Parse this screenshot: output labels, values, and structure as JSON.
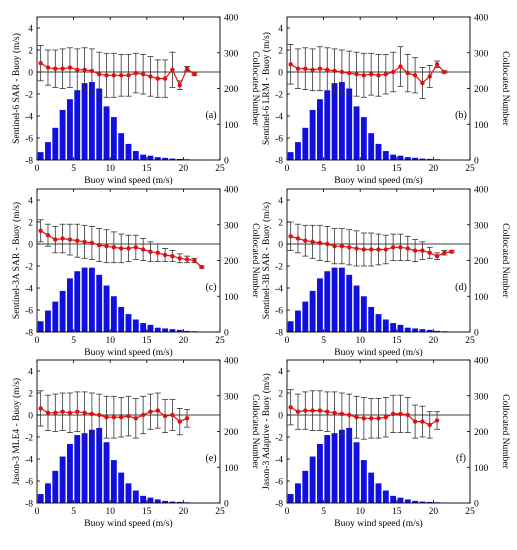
{
  "figure": {
    "shared": {
      "xlabel": "Buoy wind speed (m/s)",
      "ylabel_right": "Collocated Number",
      "x_ticks": [
        "0",
        "5",
        "10",
        "15",
        "20",
        "25"
      ],
      "y_left_ticks": [
        "4",
        "2",
        "0",
        "-2",
        "-4",
        "-6",
        "-8"
      ],
      "y_right_ticks": [
        "400",
        "300",
        "200",
        "100",
        "0"
      ]
    },
    "colors": {
      "bars": "#1010e0",
      "line": "#e01010",
      "errorbar": "#333333",
      "frame": "#000000"
    }
  },
  "chart_data": [
    {
      "type": "bar+line",
      "panel": "(a)",
      "ylabel": "Sentinel-6 SAR - Buoy (m/s)",
      "xlabel": "Buoy wind speed (m/s)",
      "y2label": "Collocated Number",
      "xlim": [
        0,
        25
      ],
      "ylim": [
        -8,
        5
      ],
      "y2lim": [
        0,
        400
      ],
      "bars": {
        "x": [
          0.5,
          1.5,
          2.5,
          3.5,
          4.5,
          5.5,
          6.5,
          7.5,
          8.5,
          9.5,
          10.5,
          11.5,
          12.5,
          13.5,
          14.5,
          15.5,
          16.5,
          17.5,
          18.5,
          19.5,
          20.5,
          21.5
        ],
        "values": [
          22,
          50,
          90,
          140,
          170,
          195,
          215,
          218,
          200,
          150,
          120,
          75,
          45,
          25,
          15,
          12,
          8,
          6,
          4,
          3,
          2,
          1
        ]
      },
      "bias": {
        "x": [
          0.5,
          1.5,
          2.5,
          3.5,
          4.5,
          5.5,
          6.5,
          7.5,
          8.5,
          9.5,
          10.5,
          11.5,
          12.5,
          13.5,
          14.5,
          15.5,
          16.5,
          17.5,
          18.5,
          19.5,
          20.5,
          21.5
        ],
        "values": [
          0.8,
          0.4,
          0.3,
          0.3,
          0.4,
          0.2,
          0.2,
          0.1,
          -0.2,
          -0.3,
          -0.3,
          -0.3,
          -0.3,
          -0.1,
          -0.2,
          -0.4,
          -0.6,
          -0.6,
          0.2,
          -1.2,
          0.3,
          -0.2
        ],
        "err": [
          1.6,
          1.6,
          1.7,
          1.8,
          1.8,
          1.9,
          2.0,
          2.0,
          2.0,
          2.0,
          2.0,
          1.9,
          1.9,
          1.8,
          1.8,
          1.8,
          1.7,
          1.7,
          1.6,
          0.4,
          0.2,
          0.1
        ]
      }
    },
    {
      "type": "bar+line",
      "panel": "(b)",
      "ylabel": "Sentinel-6 LRM - Buoy (m/s)",
      "xlabel": "Buoy wind speed (m/s)",
      "y2label": "Collocated Number",
      "xlim": [
        0,
        25
      ],
      "ylim": [
        -8,
        5
      ],
      "y2lim": [
        0,
        400
      ],
      "bars": {
        "x": [
          0.5,
          1.5,
          2.5,
          3.5,
          4.5,
          5.5,
          6.5,
          7.5,
          8.5,
          9.5,
          10.5,
          11.5,
          12.5,
          13.5,
          14.5,
          15.5,
          16.5,
          17.5,
          18.5,
          19.5,
          20.5,
          21.5
        ],
        "values": [
          22,
          50,
          90,
          140,
          170,
          195,
          215,
          218,
          200,
          150,
          120,
          75,
          45,
          25,
          15,
          12,
          8,
          6,
          4,
          3,
          2,
          1
        ]
      },
      "bias": {
        "x": [
          0.5,
          1.5,
          2.5,
          3.5,
          4.5,
          5.5,
          6.5,
          7.5,
          8.5,
          9.5,
          10.5,
          11.5,
          12.5,
          13.5,
          14.5,
          15.5,
          16.5,
          17.5,
          18.5,
          19.5,
          20.5,
          21.5
        ],
        "values": [
          0.7,
          0.3,
          0.3,
          0.2,
          0.3,
          0.2,
          0.1,
          0.0,
          -0.1,
          -0.2,
          -0.3,
          -0.2,
          -0.3,
          -0.2,
          0.0,
          0.5,
          -0.1,
          -0.3,
          -1.0,
          -0.4,
          0.7,
          0.0
        ],
        "err": [
          1.8,
          1.8,
          1.9,
          1.9,
          2.0,
          2.0,
          2.0,
          2.0,
          2.0,
          2.0,
          2.0,
          1.9,
          1.9,
          1.8,
          1.8,
          1.8,
          1.7,
          1.6,
          1.4,
          1.0,
          0.3,
          0.1
        ]
      }
    },
    {
      "type": "bar+line",
      "panel": "(c)",
      "ylabel": "Sentinel-3A SAR - Buoy (m/s)",
      "xlabel": "Buoy wind speed (m/s)",
      "y2label": "Collocated Number",
      "xlim": [
        0,
        25
      ],
      "ylim": [
        -8,
        5
      ],
      "y2lim": [
        0,
        400
      ],
      "bars": {
        "x": [
          0.5,
          1.5,
          2.5,
          3.5,
          4.5,
          5.5,
          6.5,
          7.5,
          8.5,
          9.5,
          10.5,
          11.5,
          12.5,
          13.5,
          14.5,
          15.5,
          16.5,
          17.5,
          18.5,
          19.5,
          20.5,
          21.5,
          22.5
        ],
        "values": [
          30,
          60,
          85,
          115,
          150,
          170,
          180,
          180,
          160,
          130,
          100,
          70,
          50,
          35,
          25,
          20,
          12,
          10,
          8,
          6,
          3,
          2,
          1
        ]
      },
      "bias": {
        "x": [
          0.5,
          1.5,
          2.5,
          3.5,
          4.5,
          5.5,
          6.5,
          7.5,
          8.5,
          9.5,
          10.5,
          11.5,
          12.5,
          13.5,
          14.5,
          15.5,
          16.5,
          17.5,
          18.5,
          19.5,
          20.5,
          21.5,
          22.5
        ],
        "values": [
          1.2,
          0.8,
          0.4,
          0.5,
          0.4,
          0.3,
          0.2,
          0.1,
          -0.1,
          -0.2,
          -0.3,
          -0.4,
          -0.4,
          -0.3,
          -0.5,
          -0.7,
          -0.8,
          -1.0,
          -1.1,
          -1.3,
          -1.4,
          -1.5,
          -2.1
        ],
        "err": [
          1.0,
          1.0,
          1.2,
          1.3,
          1.4,
          1.5,
          1.5,
          1.5,
          1.5,
          1.5,
          1.4,
          1.3,
          1.2,
          1.1,
          1.0,
          0.9,
          0.8,
          0.6,
          0.5,
          0.4,
          0.3,
          0.2,
          0.1
        ]
      }
    },
    {
      "type": "bar+line",
      "panel": "(d)",
      "ylabel": "Sentinel-3B SAR - Buoy (m/s)",
      "xlabel": "Buoy wind speed (m/s)",
      "y2label": "Collocated Number",
      "xlim": [
        0,
        25
      ],
      "ylim": [
        -8,
        5
      ],
      "y2lim": [
        0,
        400
      ],
      "bars": {
        "x": [
          0.5,
          1.5,
          2.5,
          3.5,
          4.5,
          5.5,
          6.5,
          7.5,
          8.5,
          9.5,
          10.5,
          11.5,
          12.5,
          13.5,
          14.5,
          15.5,
          16.5,
          17.5,
          18.5,
          19.5,
          20.5,
          21.5,
          22.5
        ],
        "values": [
          30,
          60,
          85,
          115,
          150,
          170,
          180,
          180,
          160,
          130,
          100,
          70,
          50,
          35,
          25,
          20,
          12,
          10,
          8,
          6,
          3,
          2,
          1
        ]
      },
      "bias": {
        "x": [
          0.5,
          1.5,
          2.5,
          3.5,
          4.5,
          5.5,
          6.5,
          7.5,
          8.5,
          9.5,
          10.5,
          11.5,
          12.5,
          13.5,
          14.5,
          15.5,
          16.5,
          17.5,
          18.5,
          19.5,
          20.5,
          21.5,
          22.5
        ],
        "values": [
          0.7,
          0.5,
          0.3,
          0.2,
          0.1,
          0.0,
          -0.2,
          -0.2,
          -0.3,
          -0.4,
          -0.5,
          -0.5,
          -0.5,
          -0.5,
          -0.3,
          -0.3,
          -0.4,
          -0.6,
          -0.6,
          -0.8,
          -1.1,
          -0.8,
          -0.7
        ],
        "err": [
          1.3,
          1.3,
          1.4,
          1.5,
          1.6,
          1.6,
          1.6,
          1.6,
          1.6,
          1.6,
          1.5,
          1.5,
          1.4,
          1.3,
          1.2,
          1.2,
          1.1,
          1.0,
          0.8,
          0.5,
          0.3,
          0.2,
          0.1
        ]
      }
    },
    {
      "type": "bar+line",
      "panel": "(e)",
      "ylabel": "Jason-3 MLE4 - Buoy (m/s)",
      "xlabel": "Buoy wind speed (m/s)",
      "y2label": "Collocated Number",
      "xlim": [
        0,
        25
      ],
      "ylim": [
        -8,
        5
      ],
      "y2lim": [
        0,
        400
      ],
      "bars": {
        "x": [
          0.5,
          1.5,
          2.5,
          3.5,
          4.5,
          5.5,
          6.5,
          7.5,
          8.5,
          9.5,
          10.5,
          11.5,
          12.5,
          13.5,
          14.5,
          15.5,
          16.5,
          17.5,
          18.5,
          19.5,
          20.5
        ],
        "values": [
          25,
          55,
          90,
          130,
          165,
          190,
          195,
          205,
          210,
          170,
          120,
          85,
          55,
          35,
          20,
          15,
          10,
          6,
          4,
          3,
          2
        ]
      },
      "bias": {
        "x": [
          0.5,
          1.5,
          2.5,
          3.5,
          4.5,
          5.5,
          6.5,
          7.5,
          8.5,
          9.5,
          10.5,
          11.5,
          12.5,
          13.5,
          14.5,
          15.5,
          16.5,
          17.5,
          18.5,
          19.5,
          20.5
        ],
        "values": [
          0.6,
          0.2,
          0.2,
          0.3,
          0.2,
          0.3,
          0.2,
          0.1,
          0.0,
          -0.2,
          -0.2,
          -0.2,
          -0.1,
          -0.3,
          0.0,
          0.3,
          0.4,
          -0.1,
          0.0,
          -0.6,
          -0.3
        ],
        "err": [
          1.6,
          1.6,
          1.7,
          1.7,
          1.8,
          1.8,
          1.9,
          1.9,
          1.9,
          1.9,
          1.9,
          1.8,
          1.8,
          1.8,
          1.7,
          1.6,
          1.6,
          1.5,
          1.4,
          1.2,
          0.8
        ]
      }
    },
    {
      "type": "bar+line",
      "panel": "(f)",
      "ylabel": "Jason-3 Adaptive - Buoy (m/s)",
      "xlabel": "Buoy wind speed (m/s)",
      "y2label": "Collocated Number",
      "xlim": [
        0,
        25
      ],
      "ylim": [
        -8,
        5
      ],
      "y2lim": [
        0,
        400
      ],
      "bars": {
        "x": [
          0.5,
          1.5,
          2.5,
          3.5,
          4.5,
          5.5,
          6.5,
          7.5,
          8.5,
          9.5,
          10.5,
          11.5,
          12.5,
          13.5,
          14.5,
          15.5,
          16.5,
          17.5,
          18.5,
          19.5,
          20.5,
          21.5
        ],
        "values": [
          25,
          55,
          90,
          130,
          165,
          190,
          195,
          205,
          210,
          170,
          120,
          85,
          55,
          35,
          20,
          15,
          10,
          6,
          4,
          3,
          2,
          1
        ]
      },
      "bias": {
        "x": [
          0.5,
          1.5,
          2.5,
          3.5,
          4.5,
          5.5,
          6.5,
          7.5,
          8.5,
          9.5,
          10.5,
          11.5,
          12.5,
          13.5,
          14.5,
          15.5,
          16.5,
          17.5,
          18.5,
          19.5,
          20.5
        ],
        "values": [
          0.7,
          0.3,
          0.4,
          0.4,
          0.4,
          0.3,
          0.2,
          0.1,
          0.0,
          -0.2,
          -0.3,
          -0.3,
          -0.3,
          -0.2,
          0.1,
          0.1,
          0.0,
          -0.6,
          -0.6,
          -0.9,
          -0.5
        ],
        "err": [
          1.6,
          1.6,
          1.7,
          1.8,
          1.8,
          1.8,
          1.9,
          1.9,
          1.9,
          1.9,
          1.9,
          1.8,
          1.8,
          1.8,
          1.7,
          1.7,
          1.6,
          1.5,
          1.4,
          1.2,
          0.8
        ]
      }
    }
  ]
}
